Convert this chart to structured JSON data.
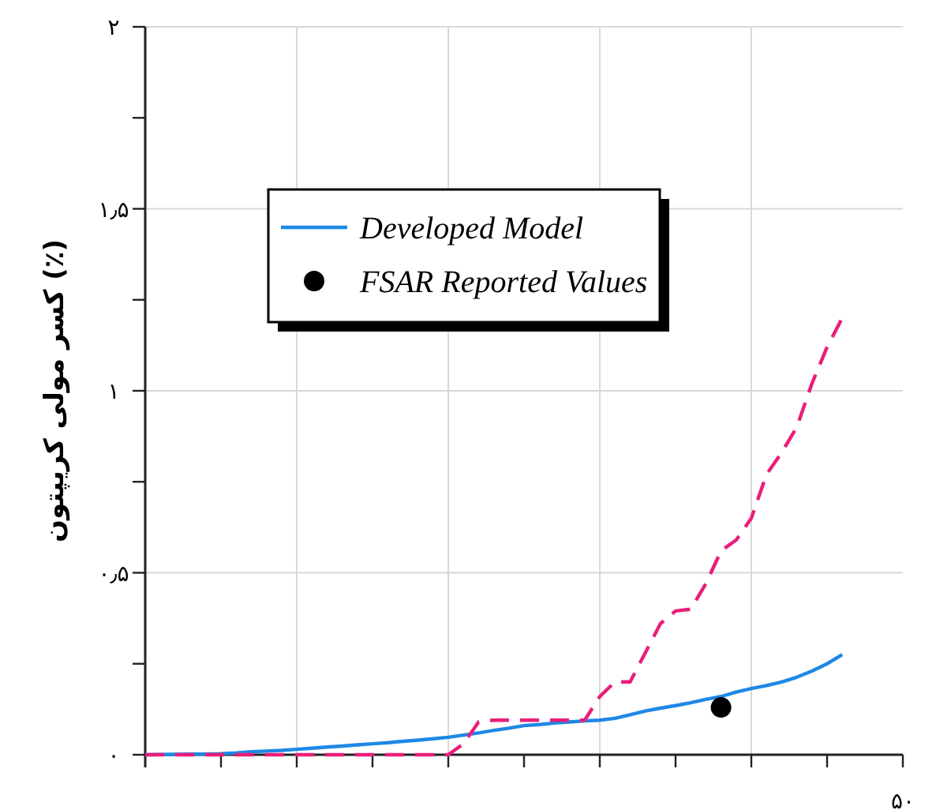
{
  "chart_data": {
    "type": "line",
    "ylabel": "کسر مولی کریپتون (٪)",
    "ylim": [
      0,
      2
    ],
    "yticks": [
      {
        "value": 0,
        "label": "۰"
      },
      {
        "value": 0.25,
        "label": null
      },
      {
        "value": 0.5,
        "label": "۰٫۵"
      },
      {
        "value": 0.75,
        "label": null
      },
      {
        "value": 1,
        "label": "۱"
      },
      {
        "value": 1.25,
        "label": null
      },
      {
        "value": 1.5,
        "label": "۱٫۵"
      },
      {
        "value": 1.75,
        "label": null
      },
      {
        "value": 2,
        "label": "۲"
      }
    ],
    "categories": [
      null,
      null,
      null,
      null,
      null,
      null,
      null,
      null,
      null,
      null,
      null,
      null,
      null,
      null,
      null,
      null,
      null,
      null,
      null,
      null,
      null,
      null,
      null,
      null,
      null,
      null,
      null,
      null,
      null,
      null,
      null,
      null,
      null,
      null,
      null,
      null,
      null,
      null,
      null,
      null,
      null,
      null,
      null,
      null,
      null,
      null,
      null,
      null,
      null,
      null,
      null
    ],
    "annotations": [
      "۵۰"
    ],
    "grid": true,
    "legend": "top left",
    "series": [
      {
        "name": "Developed Model",
        "color": "#1e88e5",
        "line_style": "solid",
        "values": [
          0,
          0.0005,
          0.001,
          0.002,
          0.002,
          0.003,
          0.005,
          0.008,
          0.01,
          0.012,
          0.015,
          0.018,
          0.021,
          0.024,
          0.027,
          0.03,
          0.033,
          0.037,
          0.04,
          0.044,
          0.048,
          0.054,
          0.06,
          0.067,
          0.073,
          0.08,
          0.083,
          0.087,
          0.09,
          0.093,
          0.095,
          0.1,
          0.11,
          0.12,
          0.128,
          0.135,
          0.143,
          0.152,
          0.16,
          0.172,
          0.182,
          0.19,
          0.2,
          0.213,
          0.23,
          0.25,
          0.275,
          null,
          null,
          null,
          null
        ]
      },
      {
        "color": "#e91e7a",
        "line_style": "dashed",
        "values": [
          0,
          0,
          0,
          0,
          0,
          0,
          0,
          0,
          0,
          0,
          0,
          0,
          0,
          0,
          0,
          0,
          0,
          0,
          0,
          0,
          0,
          0.03,
          0.09,
          0.095,
          0.095,
          0.095,
          0.095,
          0.095,
          0.095,
          0.095,
          0.16,
          0.2,
          0.2,
          0.28,
          0.36,
          0.395,
          0.4,
          0.47,
          0.56,
          0.59,
          0.65,
          0.77,
          0.83,
          0.9,
          1.02,
          1.12,
          1.2,
          null,
          null,
          null,
          null
        ]
      },
      {
        "name": "FSAR Reported Values",
        "color": "#000000",
        "type": "scatter",
        "marker": "circle",
        "values": [
          null,
          null,
          null,
          null,
          null,
          null,
          null,
          null,
          null,
          null,
          null,
          null,
          null,
          null,
          null,
          null,
          null,
          null,
          null,
          null,
          null,
          null,
          null,
          null,
          null,
          null,
          null,
          null,
          null,
          null,
          null,
          null,
          null,
          null,
          null,
          null,
          null,
          null,
          0.13,
          null,
          null,
          null,
          null,
          null,
          null,
          null,
          null,
          null,
          null,
          null,
          null
        ]
      }
    ]
  }
}
